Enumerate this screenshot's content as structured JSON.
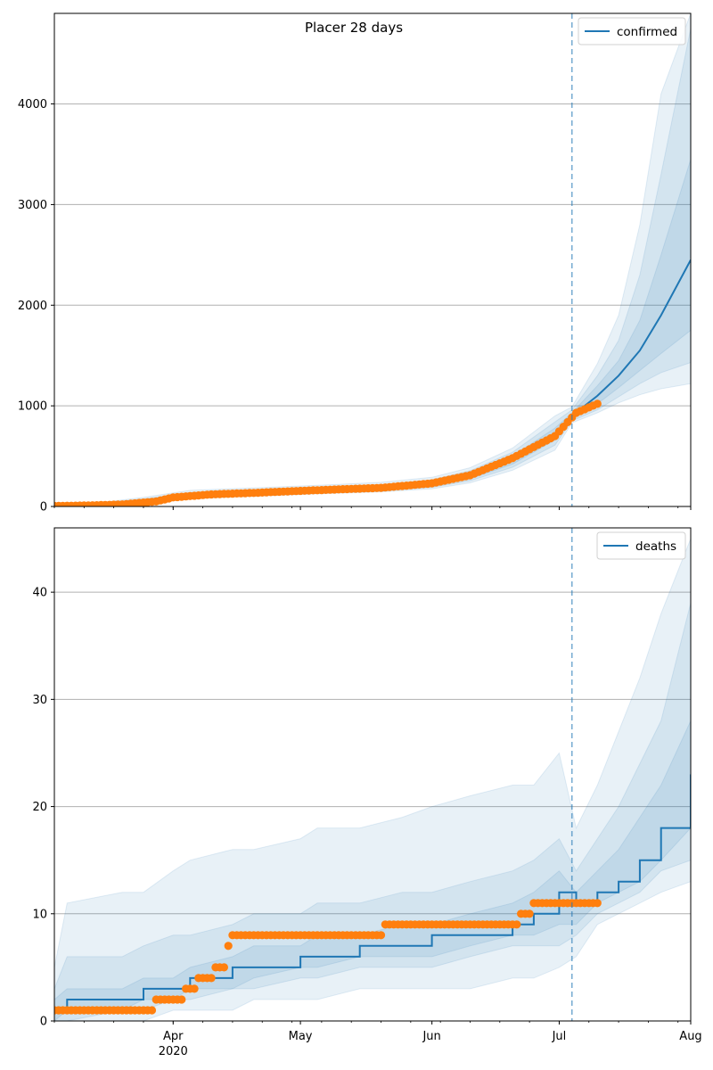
{
  "title": "Placer 28 days",
  "colors": {
    "model": "#1f77b4",
    "observed": "#ff7f0e",
    "band": "#1f77b4",
    "grid": "#b0b0b0",
    "vline": "#1f77b4"
  },
  "x_axis": {
    "tick_labels": [
      "Apr",
      "May",
      "Jun",
      "Jul",
      "Aug"
    ],
    "tick_dates": [
      "2020-04-01",
      "2020-05-01",
      "2020-06-01",
      "2020-07-01",
      "2020-08-01"
    ],
    "year_label": "2020",
    "xlim": [
      "2020-03-04",
      "2020-08-01"
    ]
  },
  "vline_date": "2020-07-04",
  "chart_data": [
    {
      "type": "line",
      "panel": "top",
      "legend": "confirmed",
      "legend_position": "top-right",
      "grid": "y",
      "ylim": [
        0,
        4900
      ],
      "yticks": [
        0,
        1000,
        2000,
        3000,
        4000
      ],
      "forecast": {
        "dates": [
          "2020-03-04",
          "2020-03-15",
          "2020-03-25",
          "2020-04-05",
          "2020-04-20",
          "2020-05-05",
          "2020-05-20",
          "2020-06-01",
          "2020-06-10",
          "2020-06-20",
          "2020-06-30",
          "2020-07-04",
          "2020-07-10",
          "2020-07-15",
          "2020-07-20",
          "2020-07-25",
          "2020-08-01"
        ],
        "median": [
          12,
          20,
          55,
          110,
          135,
          160,
          180,
          225,
          300,
          460,
          720,
          900,
          1100,
          1300,
          1550,
          1900,
          2450
        ],
        "band_inner": {
          "low": [
            8,
            15,
            45,
            95,
            120,
            145,
            165,
            205,
            275,
            420,
            660,
            870,
            1020,
            1180,
            1350,
            1520,
            1750
          ],
          "high": [
            16,
            25,
            65,
            125,
            150,
            175,
            200,
            245,
            330,
            500,
            780,
            930,
            1200,
            1450,
            1850,
            2500,
            3450
          ]
        },
        "band_mid": {
          "low": [
            5,
            12,
            35,
            85,
            110,
            135,
            155,
            190,
            255,
            390,
            610,
            850,
            960,
            1090,
            1220,
            1330,
            1430
          ],
          "high": [
            20,
            30,
            75,
            140,
            165,
            190,
            215,
            265,
            355,
            540,
            840,
            960,
            1300,
            1650,
            2300,
            3300,
            4750
          ]
        },
        "band_outer": {
          "low": [
            2,
            8,
            25,
            75,
            100,
            125,
            145,
            175,
            235,
            360,
            560,
            830,
            930,
            1030,
            1110,
            1170,
            1220
          ],
          "high": [
            28,
            40,
            90,
            160,
            185,
            210,
            240,
            290,
            385,
            580,
            900,
            990,
            1420,
            1900,
            2800,
            4100,
            4900
          ]
        }
      },
      "observed": {
        "start_date": "2020-03-04",
        "end_date": "2020-07-10",
        "anchors": {
          "dates": [
            "2020-03-04",
            "2020-03-12",
            "2020-03-20",
            "2020-03-28",
            "2020-04-01",
            "2020-04-10",
            "2020-04-20",
            "2020-05-01",
            "2020-05-10",
            "2020-05-20",
            "2020-06-01",
            "2020-06-10",
            "2020-06-20",
            "2020-06-30",
            "2020-07-05",
            "2020-07-10"
          ],
          "values": [
            5,
            10,
            20,
            50,
            90,
            120,
            135,
            155,
            170,
            185,
            230,
            310,
            480,
            700,
            930,
            1020
          ]
        }
      }
    },
    {
      "type": "line",
      "panel": "bottom",
      "legend": "deaths",
      "legend_position": "top-right",
      "grid": "y",
      "ylim": [
        0,
        46
      ],
      "yticks": [
        0,
        10,
        20,
        30,
        40
      ],
      "forecast": {
        "dates": [
          "2020-03-04",
          "2020-03-07",
          "2020-03-20",
          "2020-03-25",
          "2020-04-01",
          "2020-04-05",
          "2020-04-15",
          "2020-04-20",
          "2020-05-01",
          "2020-05-05",
          "2020-05-15",
          "2020-05-25",
          "2020-06-01",
          "2020-06-10",
          "2020-06-20",
          "2020-06-25",
          "2020-07-01",
          "2020-07-05",
          "2020-07-10",
          "2020-07-15",
          "2020-07-20",
          "2020-07-25",
          "2020-08-01"
        ],
        "median": [
          1,
          2,
          2,
          3,
          3,
          4,
          5,
          5,
          6,
          6,
          7,
          7,
          8,
          8,
          9,
          10,
          12,
          11,
          12,
          13,
          15,
          18,
          23
        ],
        "band_inner": {
          "low": [
            0,
            1,
            1,
            2,
            2,
            3,
            3,
            4,
            5,
            5,
            6,
            6,
            6,
            7,
            8,
            8,
            9,
            9,
            11,
            12,
            13,
            15,
            18
          ],
          "high": [
            2,
            3,
            3,
            4,
            4,
            5,
            6,
            7,
            7,
            8,
            8,
            9,
            9,
            10,
            11,
            12,
            14,
            12,
            14,
            16,
            19,
            22,
            28
          ]
        },
        "band_mid": {
          "low": [
            0,
            0,
            1,
            1,
            2,
            2,
            3,
            3,
            4,
            4,
            5,
            5,
            5,
            6,
            7,
            7,
            7,
            8,
            10,
            11,
            12,
            14,
            15
          ],
          "high": [
            3,
            6,
            6,
            7,
            8,
            8,
            9,
            10,
            10,
            11,
            11,
            12,
            12,
            13,
            14,
            15,
            17,
            14,
            17,
            20,
            24,
            28,
            39
          ]
        },
        "band_outer": {
          "low": [
            0,
            0,
            0,
            0,
            1,
            1,
            1,
            2,
            2,
            2,
            3,
            3,
            3,
            3,
            4,
            4,
            5,
            6,
            9,
            10,
            11,
            12,
            13
          ],
          "high": [
            5,
            11,
            12,
            12,
            14,
            15,
            16,
            16,
            17,
            18,
            18,
            19,
            20,
            21,
            22,
            22,
            25,
            18,
            22,
            27,
            32,
            38,
            45
          ]
        }
      },
      "observed": {
        "start_date": "2020-03-04",
        "end_date": "2020-07-10",
        "steps": [
          {
            "from": "2020-03-04",
            "value": 1
          },
          {
            "from": "2020-03-28",
            "value": 2
          },
          {
            "from": "2020-04-04",
            "value": 3
          },
          {
            "from": "2020-04-07",
            "value": 4
          },
          {
            "from": "2020-04-11",
            "value": 5
          },
          {
            "from": "2020-04-14",
            "value": 7
          },
          {
            "from": "2020-04-15",
            "value": 8
          },
          {
            "from": "2020-05-21",
            "value": 9
          },
          {
            "from": "2020-06-22",
            "value": 10
          },
          {
            "from": "2020-06-25",
            "value": 11
          }
        ]
      }
    }
  ]
}
